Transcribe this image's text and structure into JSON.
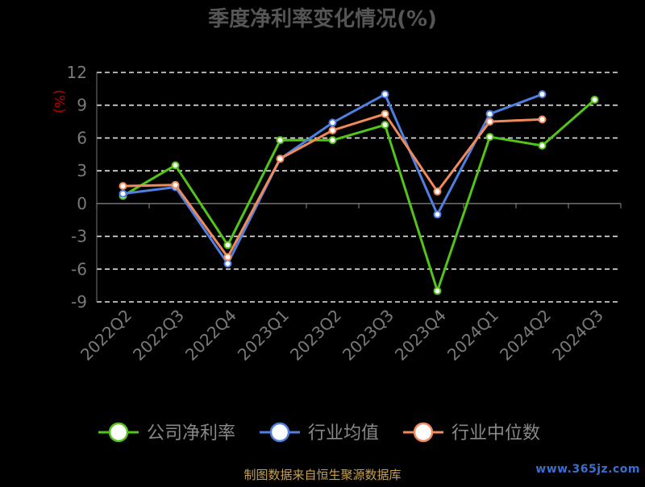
{
  "chart_data": {
    "type": "line",
    "title": "季度净利率变化情况(%)",
    "ylabel": "(%)",
    "xlabel": "",
    "ylim": [
      -9,
      12
    ],
    "yticks": [
      12,
      9,
      6,
      3,
      0,
      -3,
      -6,
      -9
    ],
    "grid": true,
    "legend_position": "bottom",
    "categories": [
      "2022Q2",
      "2022Q3",
      "2022Q4",
      "2023Q1",
      "2023Q2",
      "2023Q3",
      "2023Q4",
      "2024Q1",
      "2024Q2",
      "2024Q3"
    ],
    "series": [
      {
        "name": "公司净利率",
        "color": "#52c41a",
        "values": [
          0.7,
          3.5,
          -3.8,
          5.8,
          5.8,
          7.2,
          -8.0,
          6.1,
          5.3,
          9.5
        ]
      },
      {
        "name": "行业均值",
        "color": "#4f7fe0",
        "values": [
          0.9,
          1.5,
          -5.5,
          4.1,
          7.4,
          10.0,
          -1.0,
          8.2,
          10.0,
          null
        ]
      },
      {
        "name": "行业中位数",
        "color": "#f08a5a",
        "values": [
          1.6,
          1.7,
          -4.9,
          4.1,
          6.7,
          8.2,
          1.1,
          7.5,
          7.7,
          null
        ]
      }
    ]
  },
  "footer": {
    "source": "制图数据来自恒生聚源数据库",
    "watermark": "www.365jz.com"
  }
}
